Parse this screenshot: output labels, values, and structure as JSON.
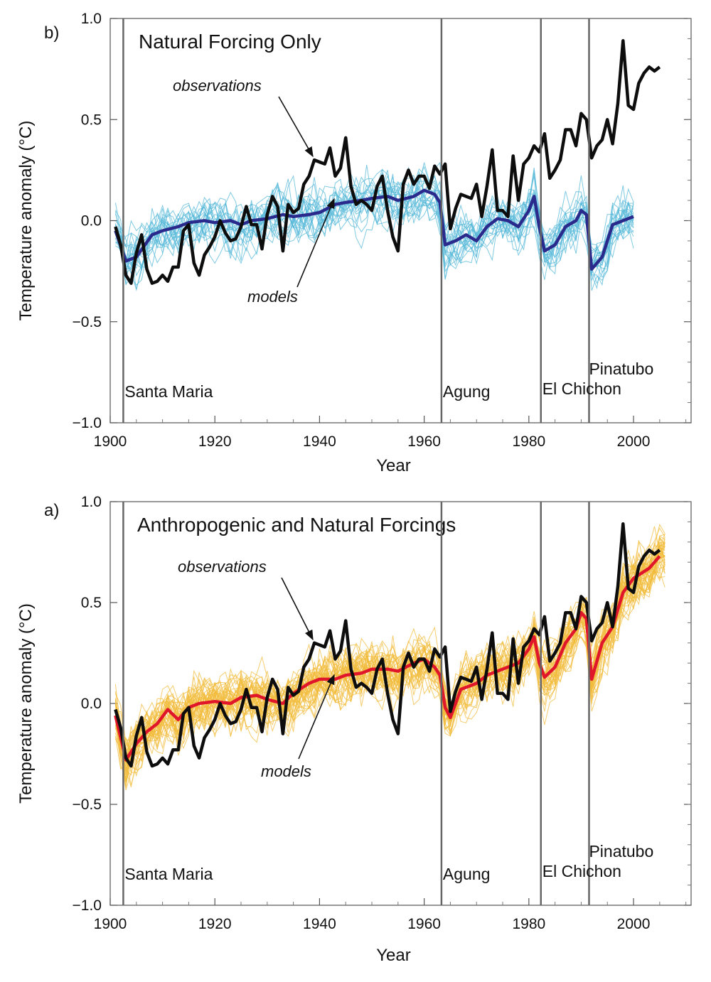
{
  "chart_data": [
    {
      "type": "line",
      "panel_label": "b)",
      "title": "Natural Forcing Only",
      "xlabel": "Year",
      "ylabel": "Temperature anomaly (°C)",
      "xlim": [
        1900,
        2011
      ],
      "ylim": [
        -1.0,
        1.0
      ],
      "xticks": [
        "1900",
        "1920",
        "1940",
        "1960",
        "1980",
        "2000"
      ],
      "yticks": [
        "−1.0",
        "−0.5",
        "0.0",
        "0.5",
        "1.0"
      ],
      "grid": false,
      "annotations": {
        "observations": "observations",
        "models": "models"
      },
      "volcanoes": [
        {
          "name": "Santa Maria",
          "year": 1902.5
        },
        {
          "name": "Agung",
          "year": 1963.3
        },
        {
          "name": "El Chichon",
          "year": 1982.3
        },
        {
          "name": "Pinatubo",
          "year": 1991.5
        }
      ],
      "colors": {
        "observations": "#0d0d0d",
        "model_mean": "#2a2a8c",
        "model_runs": "#56b8d8"
      },
      "observations": {
        "x": [
          1901,
          1902,
          1903,
          1904,
          1905,
          1906,
          1907,
          1908,
          1909,
          1910,
          1911,
          1912,
          1913,
          1914,
          1915,
          1916,
          1917,
          1918,
          1919,
          1920,
          1921,
          1922,
          1923,
          1924,
          1925,
          1926,
          1927,
          1928,
          1929,
          1930,
          1931,
          1932,
          1933,
          1934,
          1935,
          1936,
          1937,
          1938,
          1939,
          1940,
          1941,
          1942,
          1943,
          1944,
          1945,
          1946,
          1947,
          1948,
          1949,
          1950,
          1951,
          1952,
          1953,
          1954,
          1955,
          1956,
          1957,
          1958,
          1959,
          1960,
          1961,
          1962,
          1963,
          1964,
          1965,
          1966,
          1967,
          1968,
          1969,
          1970,
          1971,
          1972,
          1973,
          1974,
          1975,
          1976,
          1977,
          1978,
          1979,
          1980,
          1981,
          1982,
          1983,
          1984,
          1985,
          1986,
          1987,
          1988,
          1989,
          1990,
          1991,
          1992,
          1993,
          1994,
          1995,
          1996,
          1997,
          1998,
          1999,
          2000,
          2001,
          2002,
          2003,
          2004,
          2005
        ],
        "y": [
          -0.03,
          -0.12,
          -0.27,
          -0.31,
          -0.16,
          -0.07,
          -0.24,
          -0.31,
          -0.3,
          -0.27,
          -0.3,
          -0.23,
          -0.23,
          -0.05,
          -0.02,
          -0.21,
          -0.27,
          -0.17,
          -0.13,
          -0.08,
          0.0,
          -0.06,
          -0.1,
          -0.09,
          -0.03,
          0.07,
          -0.02,
          -0.02,
          -0.14,
          0.03,
          0.12,
          0.07,
          -0.15,
          0.08,
          0.04,
          0.06,
          0.18,
          0.22,
          0.3,
          0.29,
          0.28,
          0.36,
          0.22,
          0.26,
          0.41,
          0.17,
          0.08,
          0.1,
          0.08,
          0.05,
          0.17,
          0.22,
          0.05,
          -0.08,
          -0.15,
          0.18,
          0.25,
          0.18,
          0.22,
          0.22,
          0.16,
          0.27,
          0.23,
          0.28,
          -0.04,
          0.06,
          0.13,
          0.12,
          0.11,
          0.18,
          0.02,
          0.17,
          0.35,
          0.05,
          0.05,
          0.02,
          0.32,
          0.1,
          0.28,
          0.31,
          0.37,
          0.34,
          0.43,
          0.21,
          0.25,
          0.3,
          0.45,
          0.45,
          0.37,
          0.53,
          0.5,
          0.31,
          0.37,
          0.4,
          0.5,
          0.38,
          0.58,
          0.89,
          0.57,
          0.55,
          0.68,
          0.73,
          0.76,
          0.74,
          0.76
        ]
      },
      "model_mean": {
        "x": [
          1901,
          1903,
          1905,
          1908,
          1910,
          1913,
          1915,
          1918,
          1920,
          1923,
          1925,
          1927,
          1930,
          1933,
          1935,
          1938,
          1940,
          1943,
          1945,
          1948,
          1950,
          1953,
          1955,
          1958,
          1960,
          1962,
          1963,
          1964,
          1966,
          1968,
          1970,
          1972,
          1974,
          1976,
          1978,
          1980,
          1981,
          1982,
          1983,
          1985,
          1987,
          1989,
          1990,
          1991,
          1992,
          1994,
          1996,
          1998,
          2000
        ],
        "y": [
          -0.05,
          -0.2,
          -0.18,
          -0.07,
          -0.05,
          -0.03,
          -0.01,
          0.0,
          -0.01,
          0.0,
          -0.02,
          0.0,
          0.01,
          0.03,
          0.02,
          0.03,
          0.04,
          0.08,
          0.09,
          0.1,
          0.11,
          0.12,
          0.1,
          0.12,
          0.15,
          0.13,
          0.09,
          -0.12,
          -0.1,
          -0.07,
          -0.1,
          -0.03,
          0.01,
          0.0,
          -0.03,
          0.05,
          0.12,
          -0.03,
          -0.15,
          -0.12,
          -0.03,
          0.0,
          0.05,
          0.03,
          -0.24,
          -0.18,
          -0.02,
          0.0,
          0.02
        ]
      }
    },
    {
      "type": "line",
      "panel_label": "a)",
      "title": "Anthropogenic and Natural Forcings",
      "xlabel": "Year",
      "ylabel": "Temperature anomaly (°C)",
      "xlim": [
        1900,
        2011
      ],
      "ylim": [
        -1.0,
        1.0
      ],
      "xticks": [
        "1900",
        "1920",
        "1940",
        "1960",
        "1980",
        "2000"
      ],
      "yticks": [
        "−1.0",
        "−0.5",
        "0.0",
        "0.5",
        "1.0"
      ],
      "grid": false,
      "annotations": {
        "observations": "observations",
        "models": "models"
      },
      "volcanoes": [
        {
          "name": "Santa Maria",
          "year": 1902.5
        },
        {
          "name": "Agung",
          "year": 1963.3
        },
        {
          "name": "El Chichon",
          "year": 1982.3
        },
        {
          "name": "Pinatubo",
          "year": 1991.5
        }
      ],
      "colors": {
        "observations": "#0d0d0d",
        "model_mean": "#e0172a",
        "model_runs": "#f2bc3c"
      },
      "observations": {
        "x": [
          1901,
          1902,
          1903,
          1904,
          1905,
          1906,
          1907,
          1908,
          1909,
          1910,
          1911,
          1912,
          1913,
          1914,
          1915,
          1916,
          1917,
          1918,
          1919,
          1920,
          1921,
          1922,
          1923,
          1924,
          1925,
          1926,
          1927,
          1928,
          1929,
          1930,
          1931,
          1932,
          1933,
          1934,
          1935,
          1936,
          1937,
          1938,
          1939,
          1940,
          1941,
          1942,
          1943,
          1944,
          1945,
          1946,
          1947,
          1948,
          1949,
          1950,
          1951,
          1952,
          1953,
          1954,
          1955,
          1956,
          1957,
          1958,
          1959,
          1960,
          1961,
          1962,
          1963,
          1964,
          1965,
          1966,
          1967,
          1968,
          1969,
          1970,
          1971,
          1972,
          1973,
          1974,
          1975,
          1976,
          1977,
          1978,
          1979,
          1980,
          1981,
          1982,
          1983,
          1984,
          1985,
          1986,
          1987,
          1988,
          1989,
          1990,
          1991,
          1992,
          1993,
          1994,
          1995,
          1996,
          1997,
          1998,
          1999,
          2000,
          2001,
          2002,
          2003,
          2004,
          2005
        ],
        "y": [
          -0.03,
          -0.12,
          -0.27,
          -0.31,
          -0.16,
          -0.07,
          -0.24,
          -0.31,
          -0.3,
          -0.27,
          -0.3,
          -0.23,
          -0.23,
          -0.05,
          -0.02,
          -0.21,
          -0.27,
          -0.17,
          -0.13,
          -0.08,
          0.0,
          -0.06,
          -0.1,
          -0.09,
          -0.03,
          0.07,
          -0.02,
          -0.02,
          -0.14,
          0.03,
          0.12,
          0.07,
          -0.15,
          0.08,
          0.04,
          0.06,
          0.18,
          0.22,
          0.3,
          0.29,
          0.28,
          0.36,
          0.22,
          0.26,
          0.41,
          0.17,
          0.08,
          0.1,
          0.08,
          0.05,
          0.17,
          0.22,
          0.05,
          -0.08,
          -0.15,
          0.18,
          0.25,
          0.18,
          0.22,
          0.22,
          0.16,
          0.27,
          0.23,
          0.28,
          -0.04,
          0.06,
          0.13,
          0.12,
          0.11,
          0.18,
          0.02,
          0.17,
          0.35,
          0.05,
          0.05,
          0.02,
          0.32,
          0.1,
          0.28,
          0.31,
          0.37,
          0.34,
          0.43,
          0.21,
          0.25,
          0.3,
          0.45,
          0.45,
          0.37,
          0.53,
          0.5,
          0.31,
          0.37,
          0.4,
          0.5,
          0.38,
          0.58,
          0.89,
          0.57,
          0.55,
          0.68,
          0.73,
          0.76,
          0.74,
          0.76
        ]
      },
      "model_mean": {
        "x": [
          1901,
          1903,
          1905,
          1907,
          1909,
          1911,
          1913,
          1915,
          1917,
          1920,
          1923,
          1925,
          1928,
          1930,
          1933,
          1935,
          1938,
          1940,
          1943,
          1945,
          1948,
          1950,
          1953,
          1955,
          1958,
          1960,
          1962,
          1963,
          1964,
          1965,
          1967,
          1970,
          1972,
          1975,
          1978,
          1980,
          1981,
          1982,
          1983,
          1985,
          1987,
          1989,
          1990,
          1991,
          1992,
          1994,
          1996,
          1998,
          2000,
          2003,
          2005
        ],
        "y": [
          -0.06,
          -0.28,
          -0.2,
          -0.14,
          -0.1,
          -0.03,
          -0.08,
          -0.02,
          0.0,
          0.01,
          0.0,
          0.03,
          0.04,
          0.02,
          0.0,
          0.05,
          0.1,
          0.12,
          0.12,
          0.14,
          0.15,
          0.17,
          0.17,
          0.16,
          0.2,
          0.22,
          0.18,
          0.14,
          -0.02,
          -0.07,
          0.07,
          0.1,
          0.14,
          0.17,
          0.2,
          0.27,
          0.33,
          0.2,
          0.13,
          0.18,
          0.3,
          0.37,
          0.45,
          0.42,
          0.12,
          0.3,
          0.38,
          0.55,
          0.62,
          0.67,
          0.73
        ]
      }
    }
  ]
}
